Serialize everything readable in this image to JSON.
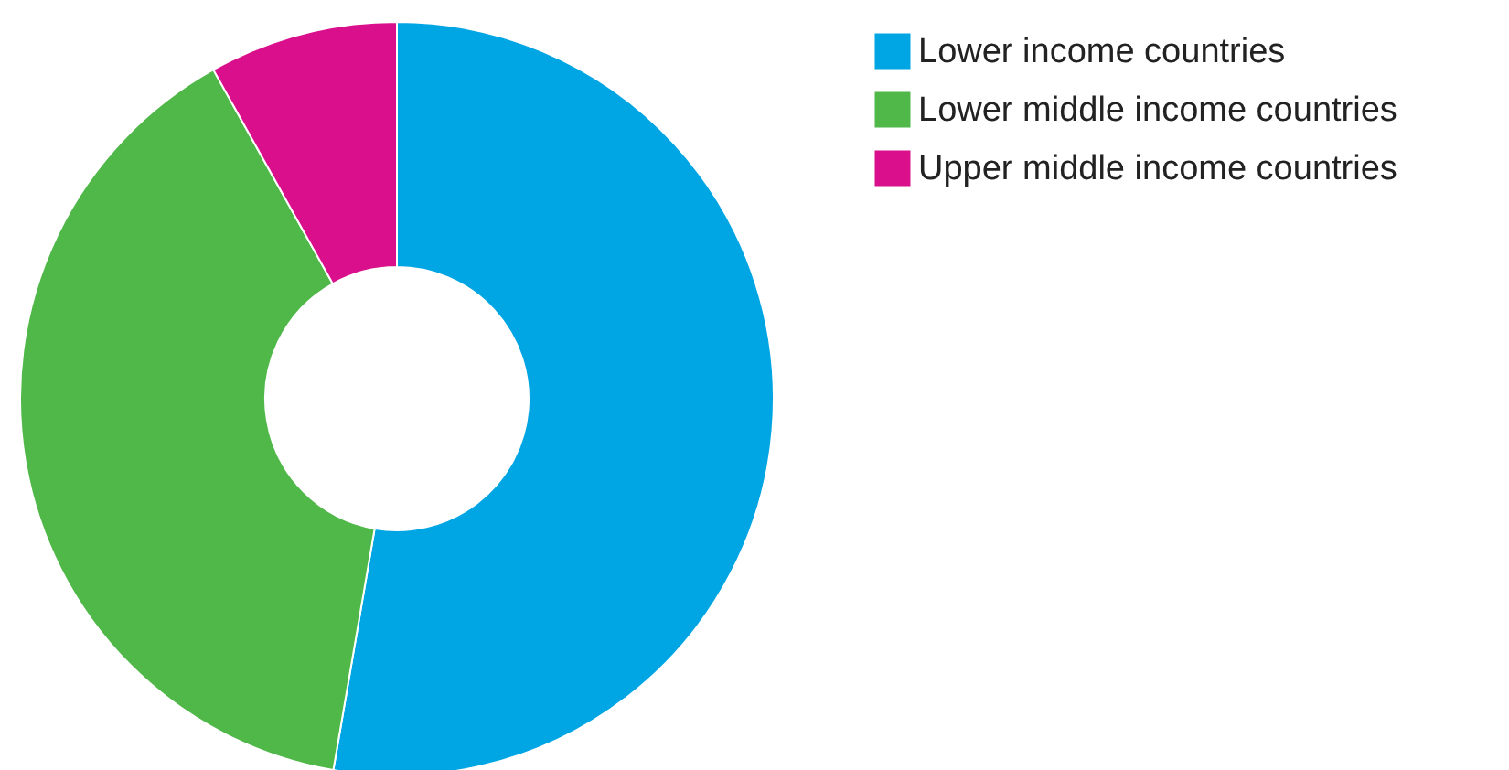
{
  "chart_data": {
    "type": "donut",
    "categories": [
      "Lower income countries",
      "Lower middle income countries",
      "Upper middle income countries"
    ],
    "values": [
      52.7,
      39.2,
      8.1
    ],
    "colors": [
      "#00a5e3",
      "#4fb848",
      "#d90f8c"
    ],
    "legend": "top right"
  }
}
